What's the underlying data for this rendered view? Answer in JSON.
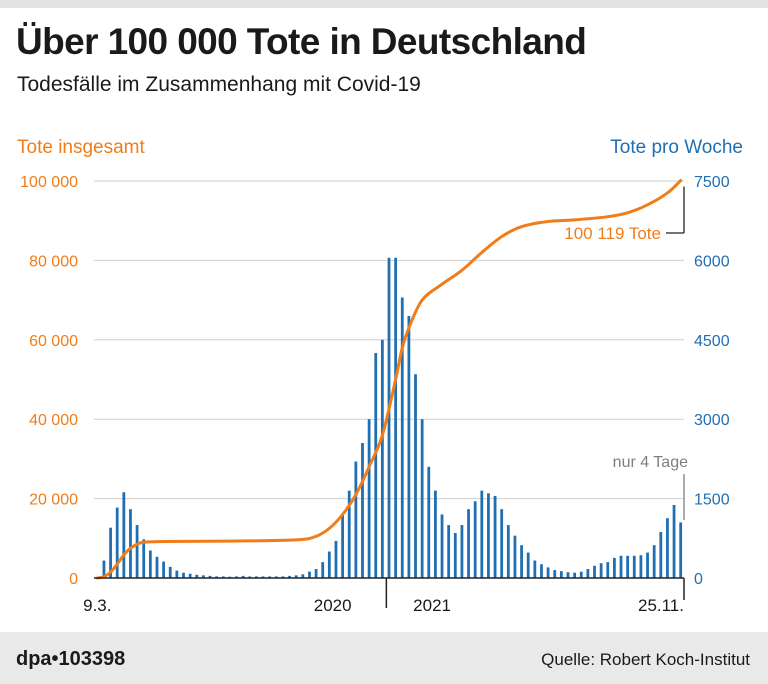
{
  "header": {
    "title": "Über 100 000 Tote in Deutschland",
    "subtitle": "Todesfälle im Zusammenhang mit Covid-19"
  },
  "chart_data": {
    "type": "bar+line",
    "title": "Über 100 000 Tote in Deutschland",
    "subtitle": "Todesfälle im Zusammenhang mit Covid-19",
    "left_axis": {
      "label": "Tote insgesamt",
      "range": [
        0,
        100000
      ],
      "ticks": [
        0,
        20000,
        40000,
        60000,
        80000,
        100000
      ],
      "tick_labels": [
        "0",
        "20 000",
        "40 000",
        "60 000",
        "80 000",
        "100 000"
      ]
    },
    "right_axis": {
      "label": "Tote pro Woche",
      "range": [
        0,
        7500
      ],
      "ticks": [
        0,
        1500,
        3000,
        4500,
        6000,
        7500
      ],
      "tick_labels": [
        "0",
        "1500",
        "3000",
        "4500",
        "6000",
        "7500"
      ]
    },
    "x_labels": [
      "9.3.",
      "2020",
      "2021",
      "25.11."
    ],
    "weekly_series": {
      "name": "Tote pro Woche",
      "axis": "right",
      "color": "#1f6fb2",
      "values": [
        0,
        330,
        950,
        1330,
        1620,
        1300,
        1000,
        730,
        520,
        400,
        310,
        210,
        140,
        100,
        80,
        60,
        50,
        40,
        30,
        30,
        25,
        30,
        40,
        30,
        30,
        30,
        30,
        30,
        30,
        40,
        50,
        70,
        120,
        170,
        300,
        500,
        700,
        1200,
        1650,
        2200,
        2550,
        3000,
        4250,
        4500,
        6050,
        6050,
        5300,
        4950,
        3850,
        3000,
        2100,
        1650,
        1200,
        1000,
        850,
        1000,
        1300,
        1450,
        1650,
        1600,
        1550,
        1300,
        1000,
        800,
        620,
        480,
        330,
        260,
        200,
        150,
        130,
        110,
        100,
        120,
        170,
        230,
        280,
        300,
        380,
        420,
        420,
        420,
        430,
        480,
        620,
        870,
        1130,
        1380,
        1050
      ]
    },
    "cumulative_series": {
      "name": "Tote insgesamt",
      "axis": "left",
      "color": "#f07d1a",
      "points": [
        {
          "week": 0,
          "value": 0
        },
        {
          "week": 1,
          "value": 300
        },
        {
          "week": 2,
          "value": 1500
        },
        {
          "week": 3,
          "value": 3500
        },
        {
          "week": 4,
          "value": 5800
        },
        {
          "week": 5,
          "value": 7500
        },
        {
          "week": 6,
          "value": 8500
        },
        {
          "week": 7,
          "value": 9000
        },
        {
          "week": 10,
          "value": 9200
        },
        {
          "week": 20,
          "value": 9300
        },
        {
          "week": 30,
          "value": 9600
        },
        {
          "week": 33,
          "value": 10500
        },
        {
          "week": 35,
          "value": 12500
        },
        {
          "week": 37,
          "value": 16000
        },
        {
          "week": 39,
          "value": 21000
        },
        {
          "week": 41,
          "value": 28000
        },
        {
          "week": 43,
          "value": 36000
        },
        {
          "week": 45,
          "value": 50000
        },
        {
          "week": 46,
          "value": 58000
        },
        {
          "week": 47,
          "value": 63000
        },
        {
          "week": 49,
          "value": 70000
        },
        {
          "week": 52,
          "value": 74000
        },
        {
          "week": 55,
          "value": 77500
        },
        {
          "week": 58,
          "value": 82000
        },
        {
          "week": 61,
          "value": 86000
        },
        {
          "week": 64,
          "value": 88500
        },
        {
          "week": 68,
          "value": 89800
        },
        {
          "week": 72,
          "value": 90200
        },
        {
          "week": 77,
          "value": 91000
        },
        {
          "week": 80,
          "value": 92000
        },
        {
          "week": 83,
          "value": 94000
        },
        {
          "week": 86,
          "value": 97000
        },
        {
          "week": 88,
          "value": 100119
        }
      ]
    },
    "annotations": [
      {
        "text": "100 119 Tote",
        "target": "cumulative end",
        "color": "#f07d1a"
      },
      {
        "text": "nur 4 Tage",
        "target": "last weekly bar",
        "color": "#7f7f7f"
      }
    ],
    "grid": true
  },
  "footer": {
    "brand": "dpa•103398",
    "source": "Quelle: Robert Koch-Institut"
  }
}
